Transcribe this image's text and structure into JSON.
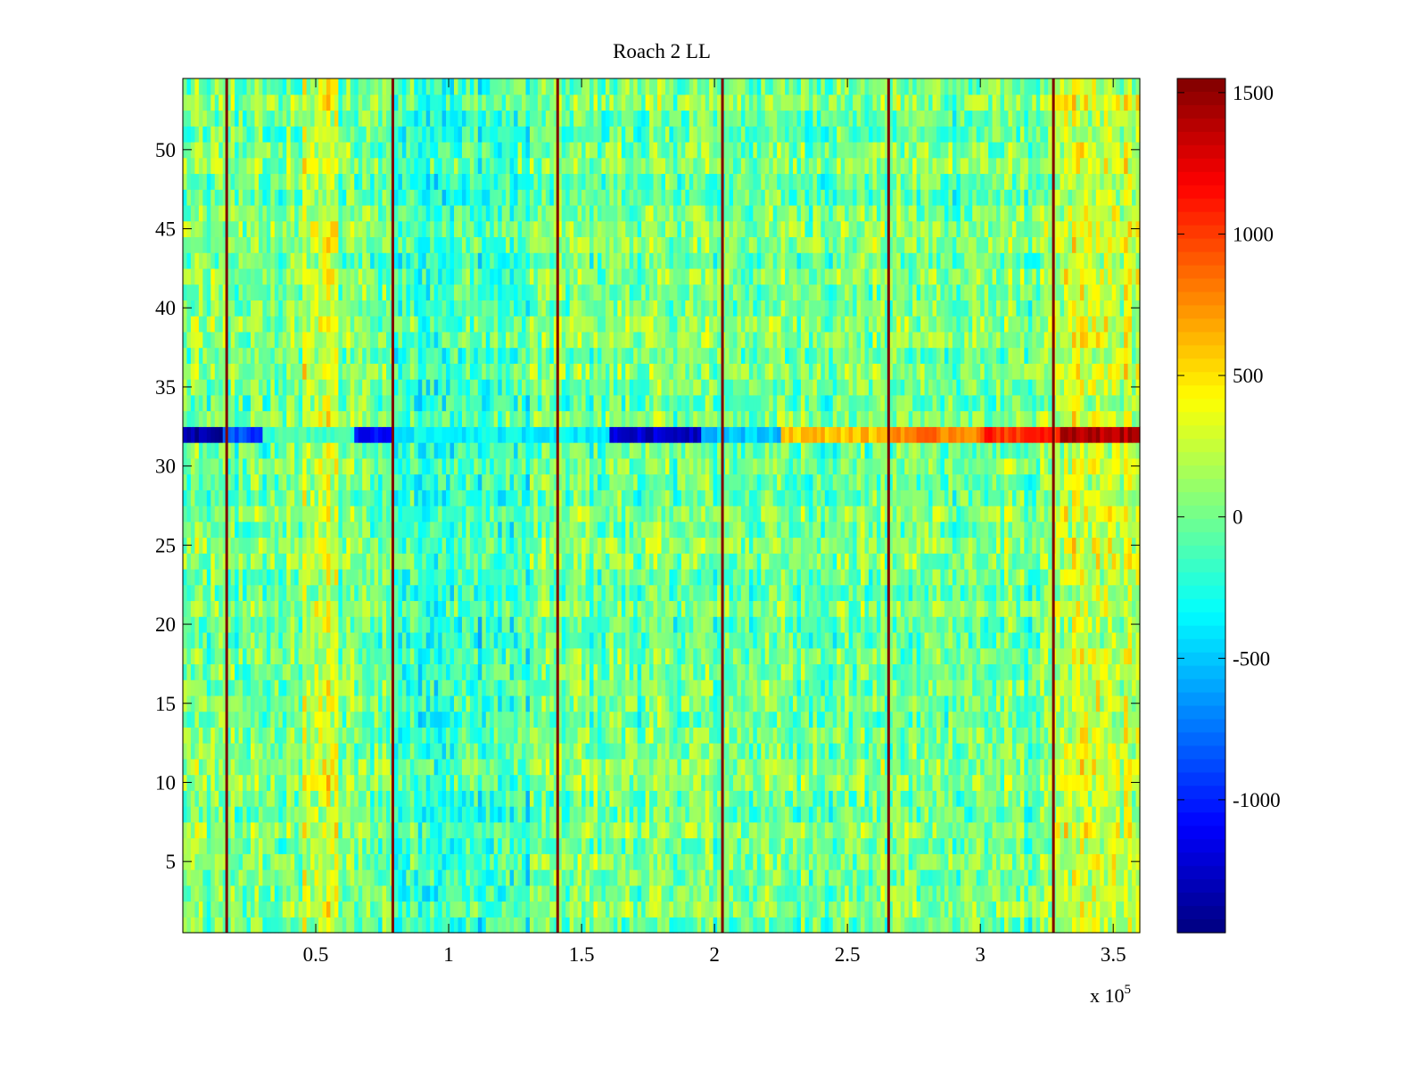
{
  "chart_data": {
    "type": "heatmap",
    "title": "Roach 2 LL",
    "xlabel": "",
    "ylabel": "",
    "x_multiplier_label": "x 10",
    "x_multiplier_exponent": "5",
    "xlim": [
      0,
      3.6
    ],
    "ylim": [
      0.5,
      54.5
    ],
    "x_ticks": [
      0.5,
      1,
      1.5,
      2,
      2.5,
      3,
      3.5
    ],
    "x_tick_labels": [
      "0.5",
      "1",
      "1.5",
      "2",
      "2.5",
      "3",
      "3.5"
    ],
    "y_ticks": [
      5,
      10,
      15,
      20,
      25,
      30,
      35,
      40,
      45,
      50
    ],
    "y_tick_labels": [
      "5",
      "10",
      "15",
      "20",
      "25",
      "30",
      "35",
      "40",
      "45",
      "50"
    ],
    "colormap": "jet",
    "color_limits": [
      -1470,
      1550
    ],
    "colorbar_ticks": [
      1500,
      1000,
      500,
      0,
      -500,
      -1000
    ],
    "colorbar_tick_labels": [
      "1500",
      "1000",
      "500",
      "0",
      "-500",
      "-1000"
    ],
    "rows": 54,
    "background_level": 0,
    "noise_amplitude": 280,
    "vertical_lines": {
      "x_values": [
        0.165,
        0.79,
        1.41,
        2.03,
        2.655,
        3.275
      ],
      "value": 1550
    },
    "warm_bands": [
      {
        "x_range": [
          0.45,
          0.58
        ],
        "mean": 260
      },
      {
        "x_range": [
          3.25,
          3.6
        ],
        "mean": 220
      }
    ],
    "cool_bands": [
      {
        "x_range": [
          0.8,
          1.3
        ],
        "mean": -150
      }
    ],
    "anomalous_rows": [
      {
        "row": 32,
        "segments": [
          {
            "x_range": [
              0.0,
              0.15
            ],
            "value": -1380
          },
          {
            "x_range": [
              0.15,
              0.3
            ],
            "value": -900
          },
          {
            "x_range": [
              0.3,
              0.65
            ],
            "value": -150
          },
          {
            "x_range": [
              0.65,
              0.8
            ],
            "value": -1100
          },
          {
            "x_range": [
              0.8,
              1.6
            ],
            "value": -350
          },
          {
            "x_range": [
              1.6,
              1.95
            ],
            "value": -1250
          },
          {
            "x_range": [
              1.95,
              2.25
            ],
            "value": -500
          },
          {
            "x_range": [
              2.25,
              2.65
            ],
            "value": 600
          },
          {
            "x_range": [
              2.65,
              3.0
            ],
            "value": 800
          },
          {
            "x_range": [
              3.0,
              3.3
            ],
            "value": 1050
          },
          {
            "x_range": [
              3.3,
              3.6
            ],
            "value": 1400
          }
        ]
      }
    ]
  }
}
